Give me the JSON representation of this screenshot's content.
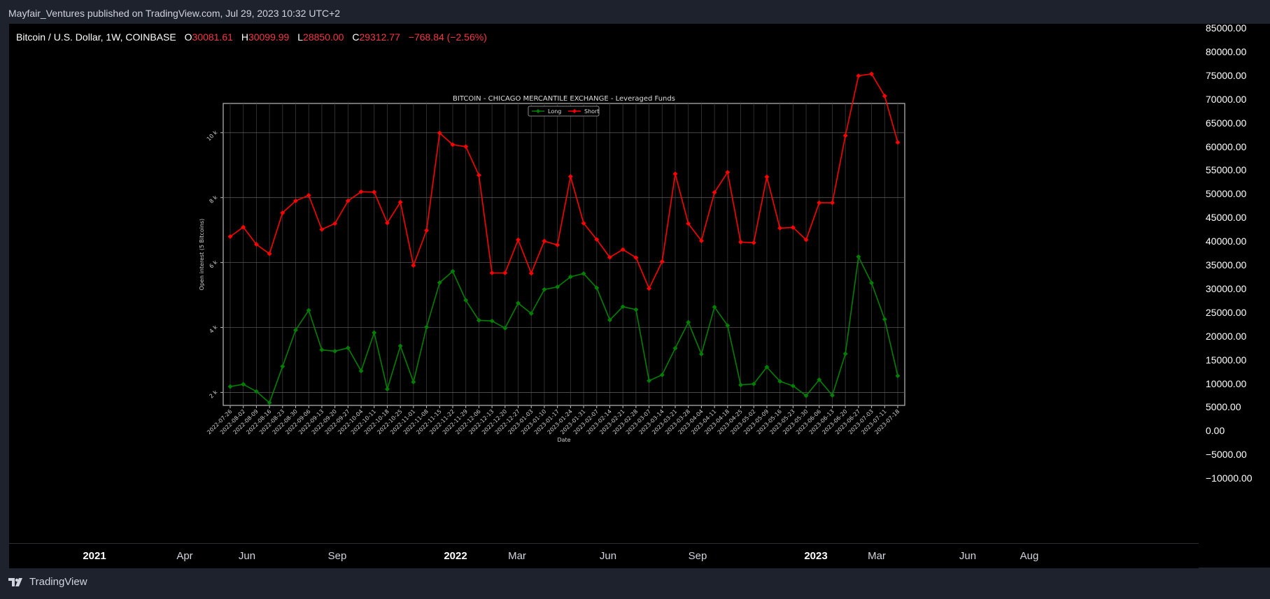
{
  "header": {
    "publish_text": "Mayfair_Ventures published on TradingView.com, Jul 29, 2023 10:32 UTC+2"
  },
  "legend": {
    "symbol": "Bitcoin / U.S. Dollar, 1W, COINBASE",
    "o_label": "O",
    "o_value": "30081.61",
    "h_label": "H",
    "h_value": "30099.99",
    "l_label": "L",
    "l_value": "28850.00",
    "c_label": "C",
    "c_value": "29312.77",
    "change": "−768.84 (−2.56%)"
  },
  "price_axis": [
    "85000.00",
    "80000.00",
    "75000.00",
    "70000.00",
    "65000.00",
    "60000.00",
    "55000.00",
    "50000.00",
    "45000.00",
    "40000.00",
    "35000.00",
    "30000.00",
    "25000.00",
    "20000.00",
    "15000.00",
    "10000.00",
    "5000.00",
    "0.00",
    "−5000.00",
    "−10000.00"
  ],
  "time_axis": [
    {
      "label": "2021",
      "bold": true
    },
    {
      "label": "Apr",
      "bold": false
    },
    {
      "label": "Jun",
      "bold": false
    },
    {
      "label": "Sep",
      "bold": false
    },
    {
      "label": "2022",
      "bold": true
    },
    {
      "label": "Mar",
      "bold": false
    },
    {
      "label": "Jun",
      "bold": false
    },
    {
      "label": "Sep",
      "bold": false
    },
    {
      "label": "2023",
      "bold": true
    },
    {
      "label": "Mar",
      "bold": false
    },
    {
      "label": "Jun",
      "bold": false
    },
    {
      "label": "Aug",
      "bold": false
    }
  ],
  "footer": {
    "brand": "TradingView"
  },
  "colors": {
    "long": "#008000",
    "short": "#ff0000",
    "accent": "#f23645"
  },
  "chart_data": {
    "type": "line",
    "title": "BITCOIN - CHICAGO MERCANTILE EXCHANGE - Leveraged Funds",
    "xlabel": "Date",
    "ylabel": "Open interest (5 Bitcoins)",
    "ylim": [
      1600,
      10900
    ],
    "yticks": [
      2000,
      4000,
      6000,
      8000,
      10000
    ],
    "ytick_labels": [
      "2 k",
      "4 k",
      "6 k",
      "8 k",
      "10 k"
    ],
    "legend": [
      "Long",
      "Short"
    ],
    "legend_position": "top-center",
    "grid": true,
    "categories": [
      "2022-07-26",
      "2022-08-02",
      "2022-08-09",
      "2022-08-16",
      "2022-08-23",
      "2022-08-30",
      "2022-09-06",
      "2022-09-13",
      "2022-09-20",
      "2022-09-27",
      "2022-10-04",
      "2022-10-11",
      "2022-10-18",
      "2022-10-25",
      "2022-11-01",
      "2022-11-08",
      "2022-11-15",
      "2022-11-22",
      "2022-11-29",
      "2022-12-06",
      "2022-12-13",
      "2022-12-20",
      "2022-12-27",
      "2023-01-03",
      "2023-01-10",
      "2023-01-17",
      "2023-01-24",
      "2023-01-31",
      "2023-02-07",
      "2023-02-14",
      "2023-02-21",
      "2023-02-28",
      "2023-03-07",
      "2023-03-14",
      "2023-03-21",
      "2023-03-28",
      "2023-04-04",
      "2023-04-11",
      "2023-04-18",
      "2023-04-25",
      "2023-05-02",
      "2023-05-09",
      "2023-05-16",
      "2023-05-23",
      "2023-05-30",
      "2023-06-06",
      "2023-06-13",
      "2023-06-20",
      "2023-06-27",
      "2023-07-03",
      "2023-07-11",
      "2023-07-18"
    ],
    "series": [
      {
        "name": "Long",
        "values": [
          2180,
          2250,
          2030,
          1680,
          2800,
          3920,
          4530,
          3310,
          3270,
          3370,
          2660,
          3840,
          2100,
          3430,
          2320,
          4010,
          5380,
          5730,
          4840,
          4220,
          4200,
          3980,
          4750,
          4430,
          5170,
          5250,
          5560,
          5660,
          5220,
          4230,
          4640,
          4550,
          2360,
          2540,
          3360,
          4160,
          3180,
          4630,
          4060,
          2230,
          2260,
          2780,
          2340,
          2200,
          1900,
          2390,
          1910,
          3190,
          6180,
          5370,
          4250,
          2510
        ]
      },
      {
        "name": "Short",
        "values": [
          6800,
          7090,
          6560,
          6270,
          7530,
          7900,
          8070,
          7020,
          7200,
          7900,
          8180,
          8170,
          7220,
          7860,
          5910,
          6990,
          9990,
          9630,
          9570,
          8690,
          5680,
          5680,
          6700,
          5670,
          6660,
          6540,
          8650,
          7210,
          6710,
          6160,
          6400,
          6150,
          5200,
          6030,
          8730,
          7200,
          6670,
          8160,
          8780,
          6630,
          6610,
          8640,
          7060,
          7080,
          6700,
          7840,
          7840,
          9910,
          11750,
          11810,
          11130,
          9700
        ]
      }
    ]
  }
}
